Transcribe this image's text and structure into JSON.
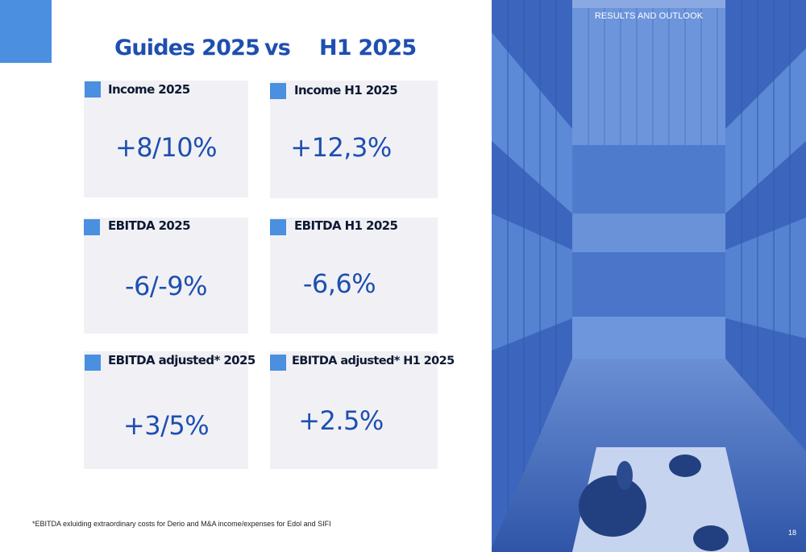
{
  "header": {
    "left_title": "Guides 2025",
    "vs": "vs",
    "right_title": "H1 2025"
  },
  "cards": [
    {
      "title": "Income 2025",
      "value": "+8/10%"
    },
    {
      "title": "Income H1 2025",
      "value": "+12,3%"
    },
    {
      "title": "EBITDA 2025",
      "value": "-6/-9%"
    },
    {
      "title": "EBITDA H1 2025",
      "value": "-6,6%"
    },
    {
      "title": "EBITDA adjusted* 2025",
      "value": "+3/5%"
    },
    {
      "title": "EBITDA adjusted* H1 2025",
      "value": "+2.5%"
    }
  ],
  "footnote": "*EBITDA exluiding extraordinary costs for Derio and M&A income/expenses for Edol and SIFI",
  "sidebar": {
    "section_label": "RESULTS AND OUTLOOK",
    "page_number": "18"
  },
  "colors": {
    "accent": "#4a8fe0",
    "heading": "#1e4fb0",
    "card_bg": "#f1f1f5",
    "photo_tint": "#3f6bc4"
  }
}
